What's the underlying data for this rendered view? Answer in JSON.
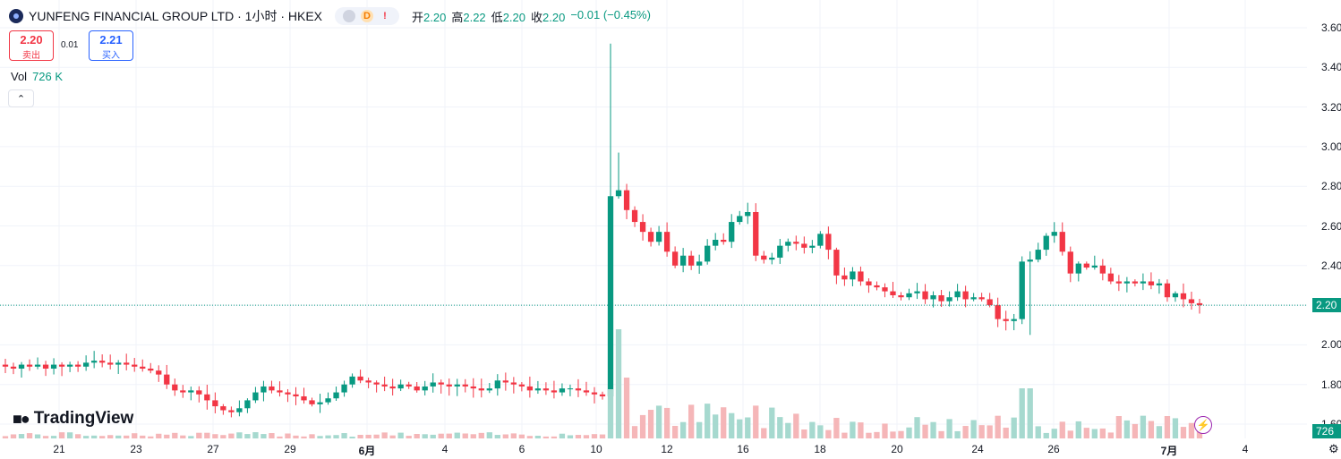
{
  "header": {
    "symbol": "YUNFENG FINANCIAL GROUP LTD · 1小时 · HKEX",
    "badges": [
      "",
      "D",
      "!"
    ],
    "ohlc": {
      "open_label": "开",
      "open": "2.20",
      "high_label": "高",
      "high": "2.22",
      "low_label": "低",
      "low": "2.20",
      "close_label": "收",
      "close": "2.20",
      "change": "−0.01 (−0.45%)"
    }
  },
  "quote": {
    "sell_price": "2.20",
    "sell_label": "卖出",
    "spread": "0.01",
    "buy_price": "2.21",
    "buy_label": "买入"
  },
  "volume_legend": {
    "label": "Vol",
    "value": "726 K"
  },
  "branding": {
    "name": "TradingView"
  },
  "price_axis": {
    "ticks": [
      "3.60",
      "3.40",
      "3.20",
      "3.00",
      "2.80",
      "2.60",
      "2.40",
      "2.20",
      "2.00",
      "1.80",
      "1.60"
    ],
    "current_price_tag": "2.20",
    "volume_tag": "726"
  },
  "time_axis": {
    "ticks": [
      {
        "label": "21",
        "bold": false
      },
      {
        "label": "23",
        "bold": false
      },
      {
        "label": "27",
        "bold": false
      },
      {
        "label": "29",
        "bold": false
      },
      {
        "label": "6月",
        "bold": true
      },
      {
        "label": "4",
        "bold": false
      },
      {
        "label": "6",
        "bold": false
      },
      {
        "label": "10",
        "bold": false
      },
      {
        "label": "12",
        "bold": false
      },
      {
        "label": "16",
        "bold": false
      },
      {
        "label": "18",
        "bold": false
      },
      {
        "label": "20",
        "bold": false
      },
      {
        "label": "24",
        "bold": false
      },
      {
        "label": "26",
        "bold": false
      },
      {
        "label": "7月",
        "bold": true
      },
      {
        "label": "4",
        "bold": false
      }
    ]
  },
  "colors": {
    "up": "#089981",
    "down": "#f23645",
    "up_volume": "#a6d9cf",
    "down_volume": "#f5b6b8",
    "grid": "#f0f3fa"
  },
  "chart_data": {
    "type": "candlestick",
    "timeframe": "1小时",
    "ylim": [
      1.6,
      3.6
    ],
    "current_price": 2.2,
    "close_series": [
      1.89,
      1.88,
      1.9,
      1.89,
      1.9,
      1.88,
      1.9,
      1.89,
      1.9,
      1.89,
      1.91,
      1.92,
      1.91,
      1.9,
      1.91,
      1.9,
      1.89,
      1.88,
      1.87,
      1.85,
      1.8,
      1.77,
      1.76,
      1.77,
      1.75,
      1.72,
      1.69,
      1.67,
      1.66,
      1.68,
      1.72,
      1.76,
      1.79,
      1.77,
      1.76,
      1.75,
      1.74,
      1.72,
      1.7,
      1.71,
      1.73,
      1.76,
      1.8,
      1.84,
      1.82,
      1.81,
      1.8,
      1.79,
      1.78,
      1.8,
      1.79,
      1.77,
      1.79,
      1.81,
      1.8,
      1.79,
      1.8,
      1.79,
      1.78,
      1.77,
      1.78,
      1.82,
      1.81,
      1.8,
      1.79,
      1.77,
      1.78,
      1.77,
      1.76,
      1.78,
      1.78,
      1.77,
      1.76,
      1.75,
      1.74,
      2.75,
      2.78,
      2.68,
      2.62,
      2.57,
      2.52,
      2.57,
      2.47,
      2.4,
      2.45,
      2.4,
      2.42,
      2.5,
      2.53,
      2.52,
      2.62,
      2.65,
      2.67,
      2.45,
      2.43,
      2.44,
      2.5,
      2.52,
      2.51,
      2.49,
      2.5,
      2.56,
      2.48,
      2.35,
      2.33,
      2.37,
      2.32,
      2.3,
      2.29,
      2.27,
      2.25,
      2.24,
      2.26,
      2.27,
      2.23,
      2.25,
      2.22,
      2.24,
      2.27,
      2.23,
      2.24,
      2.23,
      2.2,
      2.13,
      2.12,
      2.13,
      2.42,
      2.43,
      2.48,
      2.55,
      2.57,
      2.47,
      2.36,
      2.41,
      2.39,
      2.4,
      2.36,
      2.32,
      2.31,
      2.32,
      2.31,
      2.32,
      2.3,
      2.31,
      2.24,
      2.26,
      2.23,
      2.21,
      2.2
    ],
    "volume_levels": "relative; peak bars at 12→13 jump and 26",
    "x_tick_labels": [
      "21",
      "23",
      "27",
      "29",
      "6月",
      "4",
      "6",
      "10",
      "12",
      "16",
      "18",
      "20",
      "24",
      "26",
      "7月",
      "4"
    ]
  }
}
